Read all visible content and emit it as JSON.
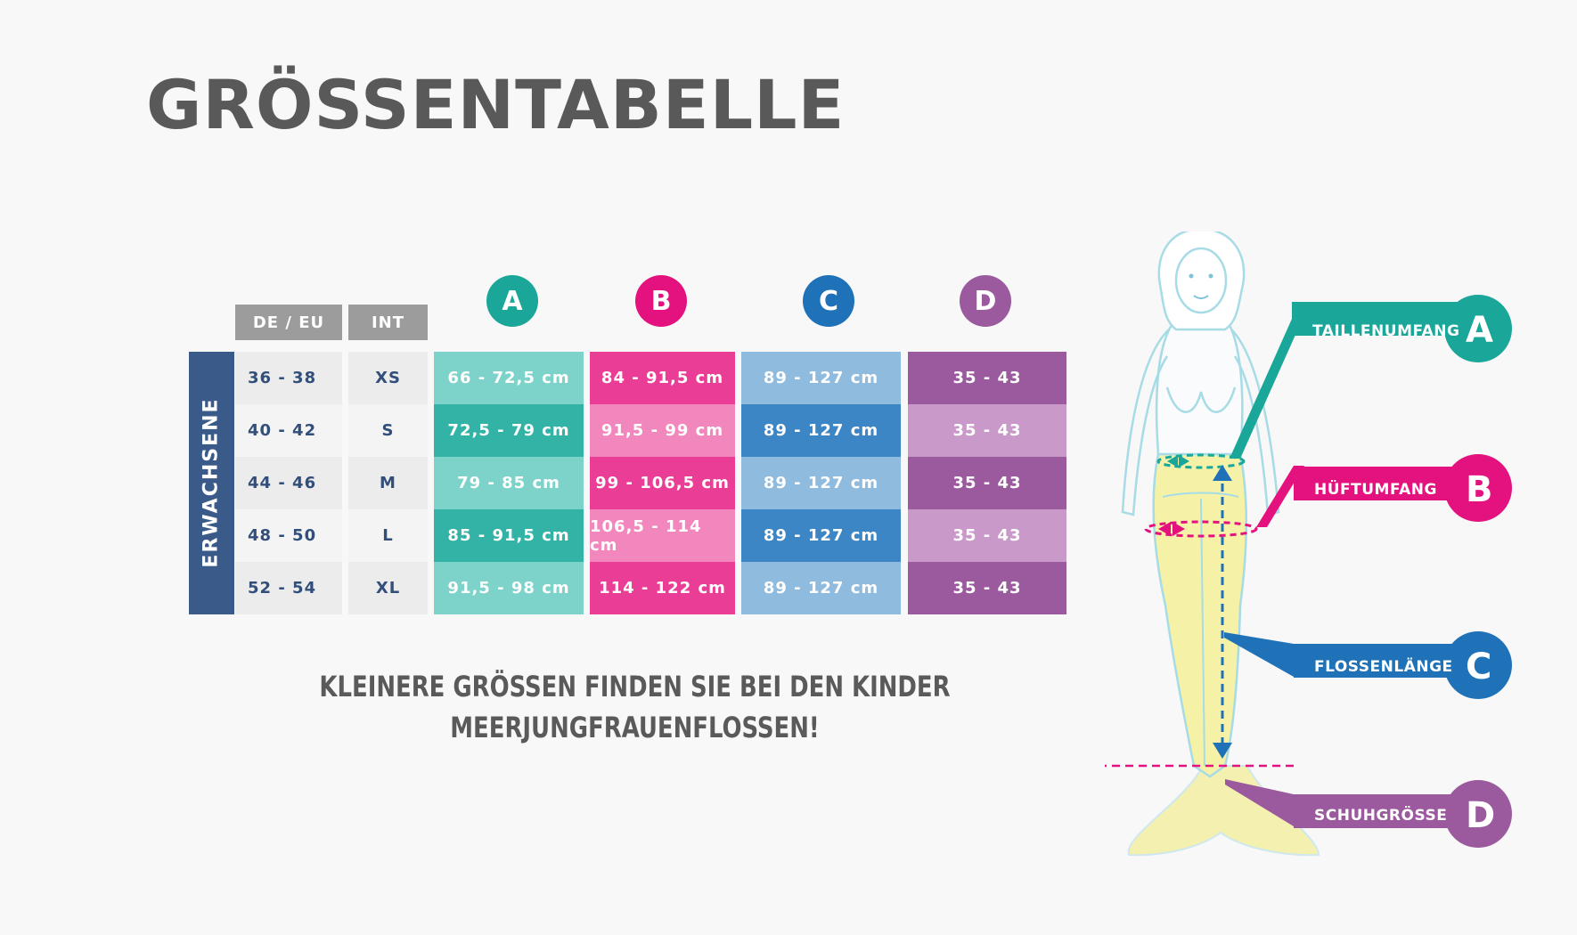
{
  "title": "GRÖSSENTABELLE",
  "table": {
    "headers": {
      "de_eu": "DE / EU",
      "int": "INT"
    },
    "group_label": "ERWACHSENE",
    "columns": [
      {
        "letter": "A",
        "color": "#1aa699"
      },
      {
        "letter": "B",
        "color": "#e3127e"
      },
      {
        "letter": "C",
        "color": "#1f71b8"
      },
      {
        "letter": "D",
        "color": "#9b5a9e"
      }
    ],
    "rows": [
      {
        "de_eu": "36 - 38",
        "int": "XS",
        "a": "66 - 72,5 cm",
        "b": "84 - 91,5 cm",
        "c": "89 - 127 cm",
        "d": "35 - 43"
      },
      {
        "de_eu": "40 - 42",
        "int": "S",
        "a": "72,5 - 79 cm",
        "b": "91,5 - 99 cm",
        "c": "89 - 127 cm",
        "d": "35 - 43"
      },
      {
        "de_eu": "44 - 46",
        "int": "M",
        "a": "79 - 85 cm",
        "b": "99 - 106,5 cm",
        "c": "89 - 127 cm",
        "d": "35 - 43"
      },
      {
        "de_eu": "48 - 50",
        "int": "L",
        "a": "85 - 91,5 cm",
        "b": "106,5 - 114 cm",
        "c": "89 - 127 cm",
        "d": "35 - 43"
      },
      {
        "de_eu": "52 - 54",
        "int": "XL",
        "a": "91,5 - 98 cm",
        "b": "114 - 122 cm",
        "c": "89 - 127 cm",
        "d": "35 - 43"
      }
    ]
  },
  "note": {
    "line1": "KLEINERE GRÖSSEN FINDEN SIE BEI DEN KINDER",
    "line2": "MEERJUNGFRAUENFLOSSEN!"
  },
  "callouts": [
    {
      "label": "TAILLENUMFANG",
      "letter": "A",
      "color": "#1aa699"
    },
    {
      "label": "HÜFTUMFANG",
      "letter": "B",
      "color": "#e3127e"
    },
    {
      "label": "FLOSSENLÄNGE",
      "letter": "C",
      "color": "#1f71b8"
    },
    {
      "label": "SCHUHGRÖSSE",
      "letter": "D",
      "color": "#9b5a9e"
    }
  ]
}
